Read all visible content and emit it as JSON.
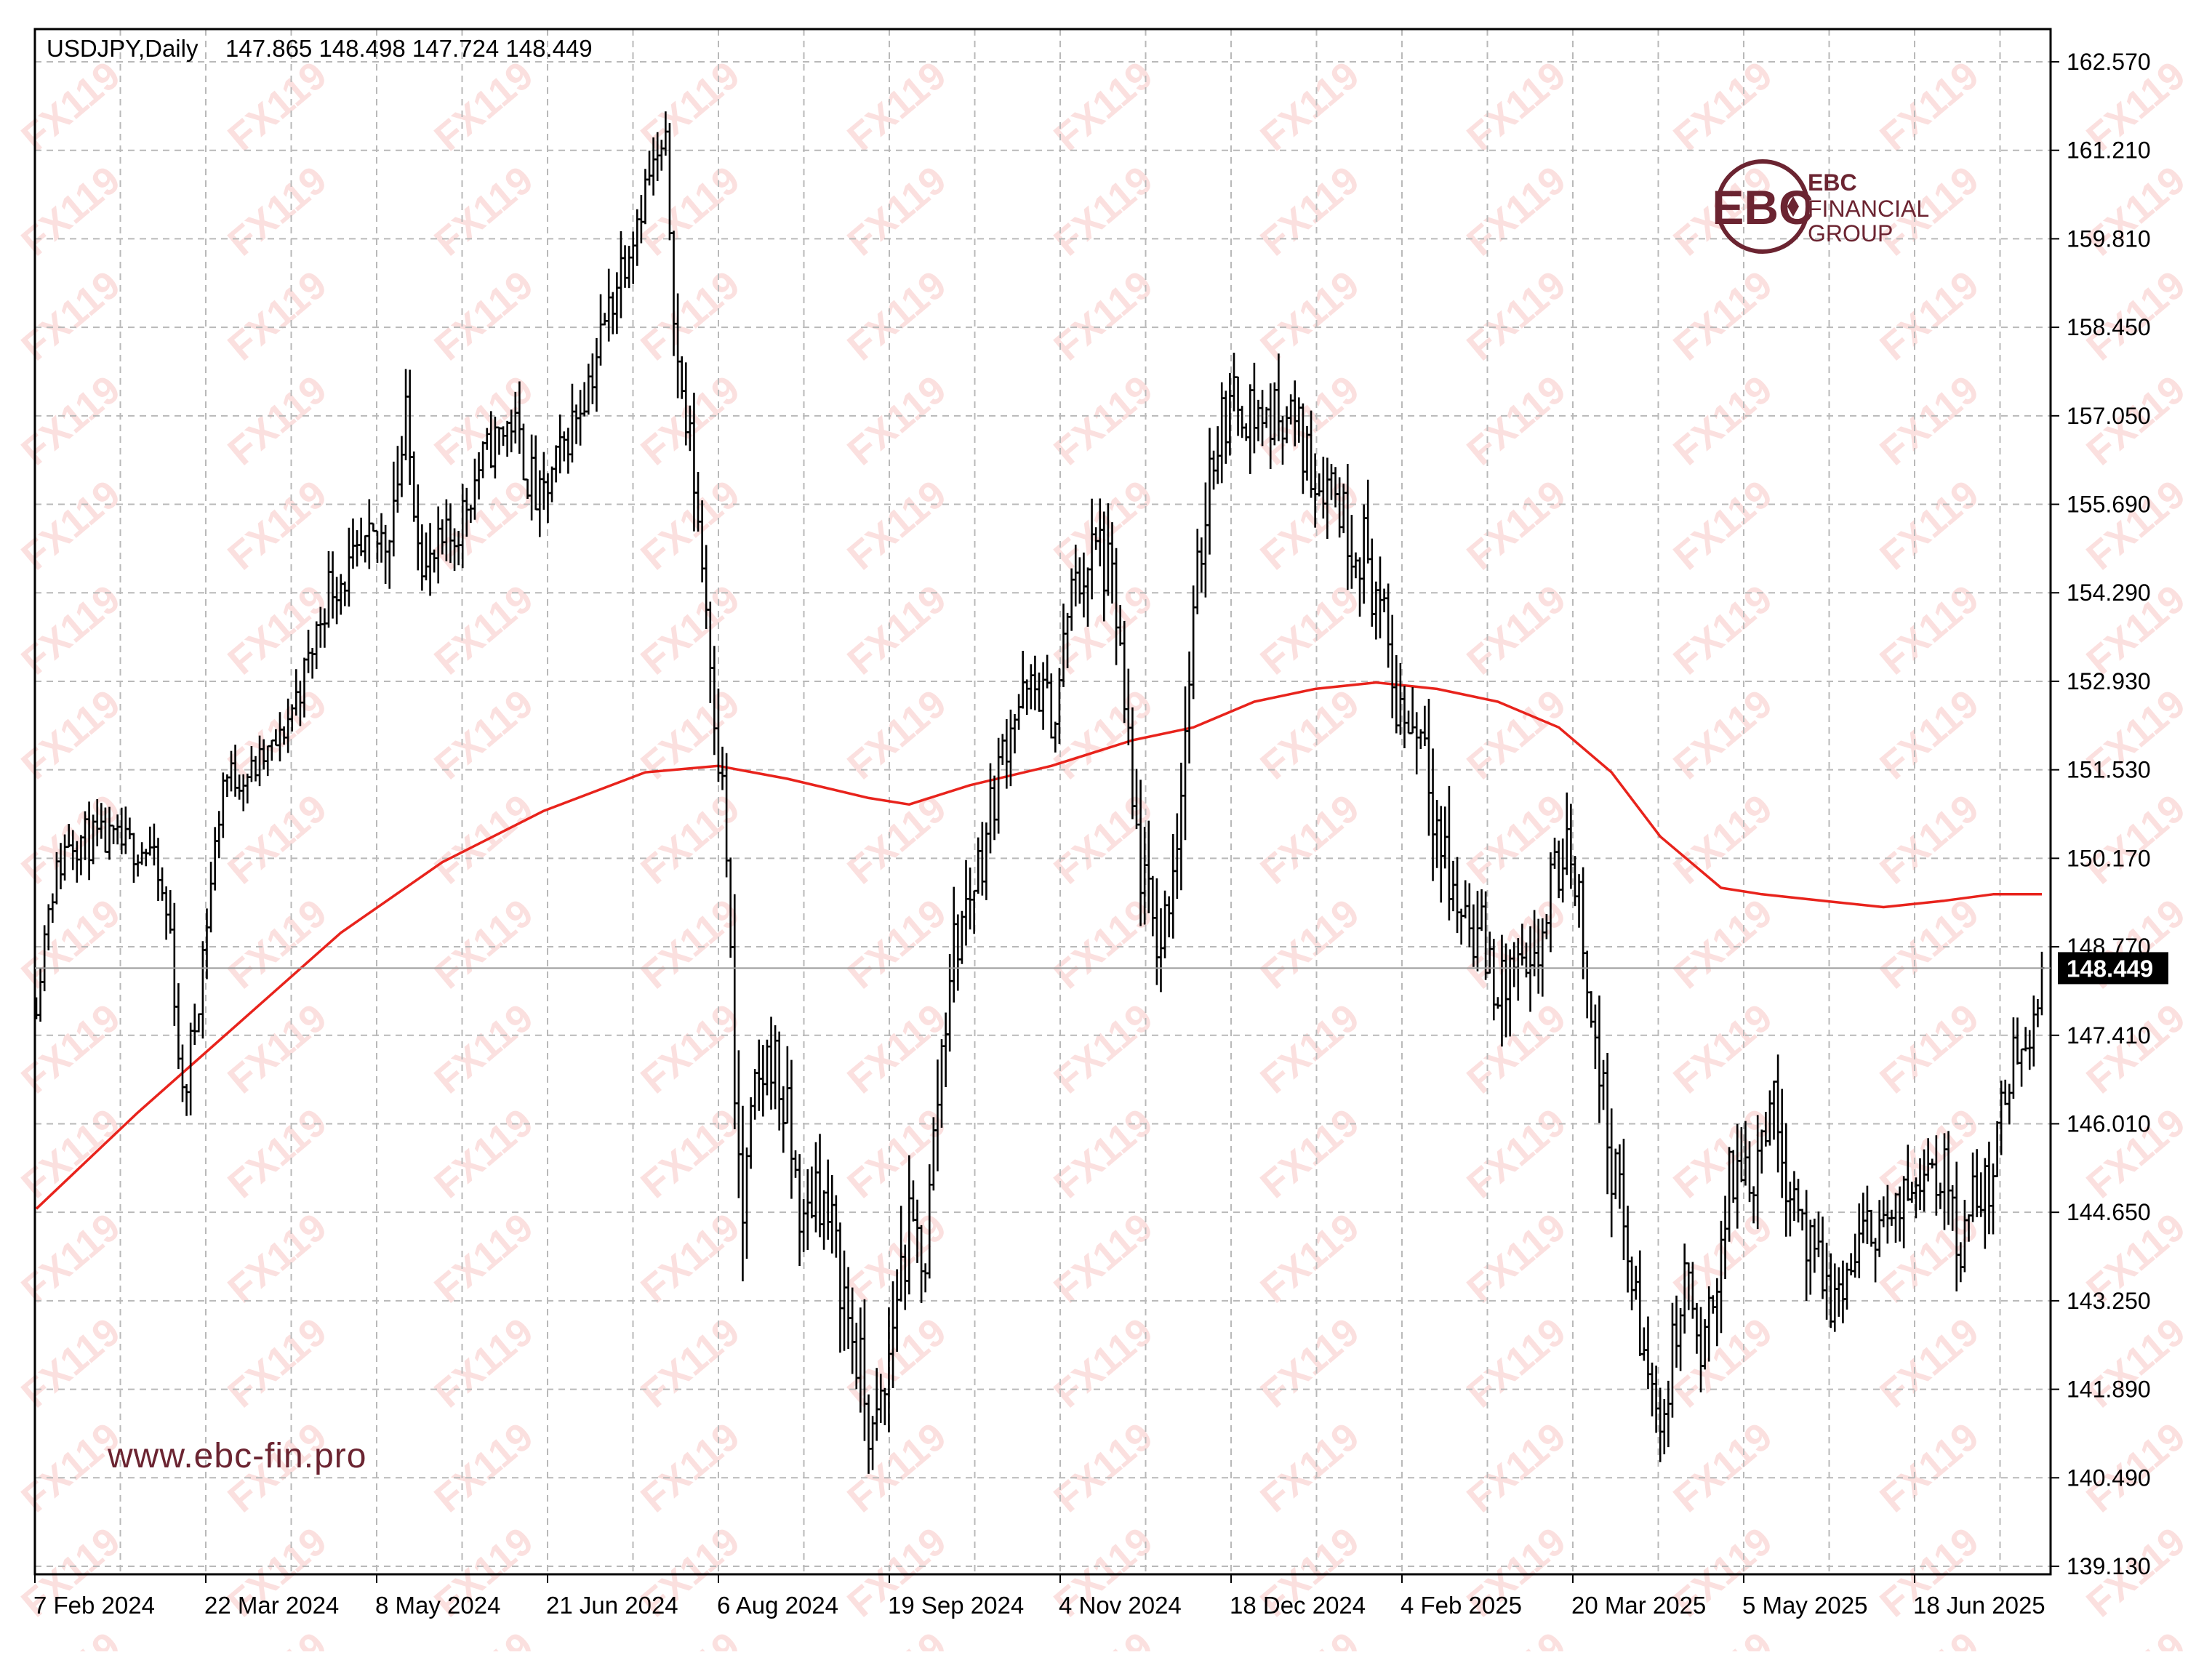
{
  "header": {
    "symbol_label": "USDJPY,Daily",
    "ohlc_text": "147.865 148.498 147.724 148.449"
  },
  "brand": {
    "logo_letters": "EBC",
    "line1": "EBC",
    "line2": "FINANCIAL",
    "line3": "GROUP",
    "website": "www.ebc-fin.pro",
    "watermark": "FX119"
  },
  "colors": {
    "candles": "#000000",
    "moving_average": "#e8231c",
    "grid": "#b9b9b9",
    "last_price_label_bg": "#000000",
    "brand": "#6b2431",
    "watermark": "#f7c7c4"
  },
  "chart_data": {
    "type": "ohlc",
    "symbol": "USDJPY",
    "timeframe": "Daily",
    "last_price": 148.449,
    "last_price_label": "148.449",
    "ylim": [
      139.13,
      163.1
    ],
    "y_ticks": [
      "162.570",
      "161.210",
      "159.810",
      "158.450",
      "157.050",
      "155.690",
      "154.290",
      "152.930",
      "151.530",
      "150.170",
      "148.770",
      "147.410",
      "146.010",
      "144.650",
      "143.250",
      "141.890",
      "140.490",
      "139.130"
    ],
    "x_ticks": [
      "7 Feb 2024",
      "22 Mar 2024",
      "8 May 2024",
      "21 Jun 2024",
      "6 Aug 2024",
      "19 Sep 2024",
      "4 Nov 2024",
      "18 Dec 2024",
      "4 Feb 2025",
      "20 Mar 2025",
      "5 May 2025",
      "18 Jun 2025"
    ],
    "grid": true,
    "anchors": [
      [
        0,
        147.9,
        0.6
      ],
      [
        3,
        149.5,
        1.0
      ],
      [
        8,
        150.5,
        1.2
      ],
      [
        18,
        150.4,
        1.0
      ],
      [
        28,
        150.3,
        1.0
      ],
      [
        33,
        149.0,
        1.2
      ],
      [
        36,
        146.3,
        1.3
      ],
      [
        39,
        147.6,
        1.4
      ],
      [
        46,
        151.4,
        1.2
      ],
      [
        53,
        151.5,
        0.9
      ],
      [
        60,
        152.0,
        0.8
      ],
      [
        67,
        153.2,
        1.2
      ],
      [
        72,
        154.4,
        1.2
      ],
      [
        79,
        154.7,
        1.4
      ],
      [
        86,
        155.2,
        1.8
      ],
      [
        91,
        156.8,
        2.0
      ],
      [
        96,
        154.6,
        1.6
      ],
      [
        103,
        155.2,
        1.4
      ],
      [
        110,
        156.4,
        1.1
      ],
      [
        117,
        157.0,
        1.4
      ],
      [
        124,
        155.6,
        1.6
      ],
      [
        130,
        156.6,
        1.2
      ],
      [
        137,
        157.8,
        1.4
      ],
      [
        144,
        159.4,
        1.4
      ],
      [
        151,
        160.8,
        1.2
      ],
      [
        155,
        161.2,
        1.0
      ],
      [
        158,
        157.8,
        1.8
      ],
      [
        162,
        156.1,
        1.8
      ],
      [
        166,
        153.5,
        2.0
      ],
      [
        170,
        150.3,
        2.3
      ],
      [
        172,
        146.3,
        2.5
      ],
      [
        174,
        144.5,
        3.0
      ],
      [
        177,
        146.4,
        1.8
      ],
      [
        181,
        147.2,
        2.0
      ],
      [
        185,
        146.0,
        2.0
      ],
      [
        189,
        144.3,
        1.8
      ],
      [
        192,
        145.2,
        1.8
      ],
      [
        196,
        144.3,
        2.0
      ],
      [
        200,
        143.0,
        2.0
      ],
      [
        203,
        142.1,
        2.0
      ],
      [
        206,
        141.0,
        2.0
      ],
      [
        209,
        141.8,
        2.2
      ],
      [
        212,
        143.5,
        2.5
      ],
      [
        215,
        144.3,
        2.0
      ],
      [
        219,
        144.0,
        2.0
      ],
      [
        222,
        146.5,
        2.5
      ],
      [
        225,
        148.5,
        2.0
      ],
      [
        229,
        149.4,
        1.8
      ],
      [
        233,
        150.3,
        1.8
      ],
      [
        236,
        151.2,
        1.6
      ],
      [
        240,
        152.4,
        1.7
      ],
      [
        243,
        152.6,
        1.6
      ],
      [
        247,
        152.8,
        1.5
      ],
      [
        251,
        152.3,
        1.4
      ],
      [
        254,
        154.0,
        1.8
      ],
      [
        258,
        154.7,
        2.1
      ],
      [
        262,
        155.0,
        2.1
      ],
      [
        266,
        154.0,
        2.0
      ],
      [
        270,
        150.8,
        2.4
      ],
      [
        274,
        149.3,
        2.0
      ],
      [
        277,
        148.8,
        1.8
      ],
      [
        281,
        150.6,
        2.0
      ],
      [
        285,
        153.7,
        2.0
      ],
      [
        289,
        156.4,
        2.2
      ],
      [
        292,
        157.0,
        1.6
      ],
      [
        296,
        157.3,
        1.6
      ],
      [
        300,
        157.1,
        1.8
      ],
      [
        304,
        157.0,
        1.7
      ],
      [
        308,
        157.2,
        1.6
      ],
      [
        312,
        156.6,
        1.8
      ],
      [
        315,
        156.1,
        1.6
      ],
      [
        319,
        156.1,
        1.8
      ],
      [
        323,
        155.3,
        2.0
      ],
      [
        327,
        155.0,
        2.0
      ],
      [
        331,
        154.0,
        1.9
      ],
      [
        335,
        152.6,
        1.8
      ],
      [
        338,
        152.3,
        2.0
      ],
      [
        342,
        152.2,
        1.8
      ],
      [
        345,
        150.7,
        2.5
      ],
      [
        349,
        149.5,
        2.2
      ],
      [
        353,
        149.3,
        2.0
      ],
      [
        357,
        148.7,
        2.2
      ],
      [
        361,
        148.0,
        2.0
      ],
      [
        364,
        148.5,
        1.9
      ],
      [
        368,
        148.0,
        2.0
      ],
      [
        371,
        149.0,
        1.8
      ],
      [
        374,
        149.9,
        1.8
      ],
      [
        378,
        150.3,
        1.6
      ],
      [
        381,
        149.0,
        1.8
      ],
      [
        384,
        147.2,
        1.8
      ],
      [
        388,
        145.5,
        2.2
      ],
      [
        392,
        144.0,
        2.0
      ],
      [
        395,
        142.7,
        1.8
      ],
      [
        398,
        141.8,
        1.6
      ],
      [
        401,
        141.5,
        1.7
      ],
      [
        404,
        142.9,
        1.8
      ],
      [
        407,
        143.7,
        1.8
      ],
      [
        410,
        142.0,
        1.8
      ],
      [
        413,
        143.4,
        1.8
      ],
      [
        417,
        145.0,
        2.0
      ],
      [
        420,
        145.4,
        1.6
      ],
      [
        423,
        145.3,
        1.8
      ],
      [
        427,
        146.5,
        1.7
      ],
      [
        430,
        145.6,
        2.0
      ],
      [
        434,
        144.8,
        1.8
      ],
      [
        437,
        143.9,
        1.8
      ],
      [
        440,
        143.6,
        1.7
      ],
      [
        443,
        143.2,
        1.6
      ],
      [
        447,
        143.8,
        1.7
      ],
      [
        450,
        144.2,
        1.6
      ],
      [
        454,
        144.6,
        1.5
      ],
      [
        457,
        144.4,
        1.6
      ],
      [
        461,
        144.9,
        1.6
      ],
      [
        465,
        145.6,
        1.6
      ],
      [
        469,
        145.3,
        1.8
      ],
      [
        472,
        144.8,
        1.8
      ],
      [
        474,
        144.1,
        1.6
      ],
      [
        477,
        144.8,
        1.7
      ],
      [
        481,
        145.1,
        1.8
      ],
      [
        485,
        146.5,
        1.4
      ],
      [
        488,
        147.3,
        1.4
      ],
      [
        491,
        147.4,
        1.2
      ],
      [
        494,
        148.449,
        0.8
      ]
    ],
    "series": [
      {
        "name": "",
        "type": "moving_average",
        "points": [
          [
            0,
            144.7
          ],
          [
            25,
            146.2
          ],
          [
            50,
            147.6
          ],
          [
            75,
            149.0
          ],
          [
            100,
            150.1
          ],
          [
            125,
            150.9
          ],
          [
            150,
            151.5
          ],
          [
            168,
            151.6
          ],
          [
            185,
            151.4
          ],
          [
            205,
            151.1
          ],
          [
            215,
            151.0
          ],
          [
            230,
            151.3
          ],
          [
            250,
            151.6
          ],
          [
            270,
            152.0
          ],
          [
            285,
            152.2
          ],
          [
            300,
            152.6
          ],
          [
            315,
            152.8
          ],
          [
            330,
            152.9
          ],
          [
            345,
            152.8
          ],
          [
            360,
            152.6
          ],
          [
            375,
            152.2
          ],
          [
            388,
            151.5
          ],
          [
            400,
            150.5
          ],
          [
            415,
            149.7
          ],
          [
            425,
            149.6
          ],
          [
            440,
            149.5
          ],
          [
            455,
            149.4
          ],
          [
            470,
            149.5
          ],
          [
            482,
            149.6
          ],
          [
            494,
            149.6
          ]
        ]
      }
    ]
  }
}
